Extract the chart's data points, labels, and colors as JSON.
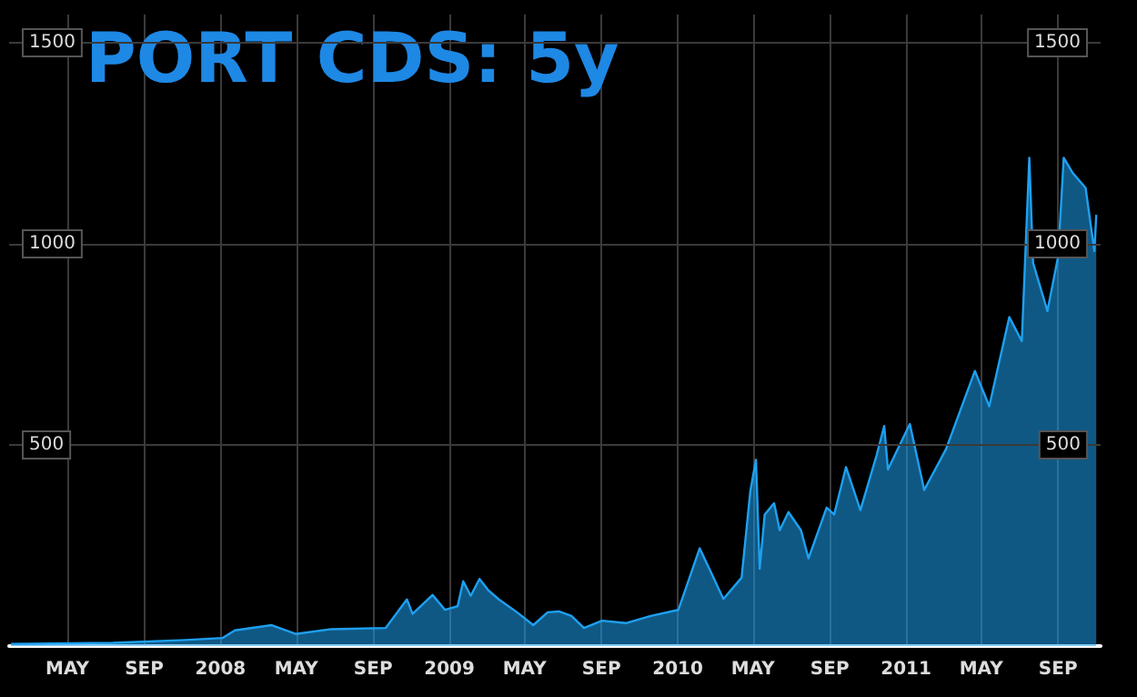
{
  "chart_data": {
    "type": "area",
    "title": "PORT CDS: 5y",
    "x": [
      "2007-01-31",
      "2007-07-13",
      "2007-11-06",
      "2008-01-04",
      "2008-01-24",
      "2008-03-23",
      "2008-04-30",
      "2008-06-26",
      "2008-09-21",
      "2008-10-25",
      "2008-11-03",
      "2008-12-05",
      "2008-12-25",
      "2009-01-14",
      "2009-01-23",
      "2009-02-04",
      "2009-02-18",
      "2009-03-04",
      "2009-03-21",
      "2009-04-19",
      "2009-05-15",
      "2009-06-07",
      "2009-06-25",
      "2009-07-15",
      "2009-08-04",
      "2009-09-02",
      "2009-10-10",
      "2009-11-19",
      "2010-01-02",
      "2010-02-05",
      "2010-02-23",
      "2010-03-15",
      "2010-04-13",
      "2010-04-27",
      "2010-05-06",
      "2010-05-12",
      "2010-05-20",
      "2010-06-04",
      "2010-06-13",
      "2010-06-27",
      "2010-07-17",
      "2010-07-29",
      "2010-08-27",
      "2010-09-08",
      "2010-09-27",
      "2010-10-20",
      "2010-11-15",
      "2010-11-27",
      "2010-12-03",
      "2011-01-07",
      "2011-01-30",
      "2011-03-06",
      "2011-04-21",
      "2011-05-14",
      "2011-06-15",
      "2011-07-05",
      "2011-07-17",
      "2011-07-23",
      "2011-08-15",
      "2011-09-01",
      "2011-09-10",
      "2011-09-24",
      "2011-10-15",
      "2011-10-29",
      "2011-11-01"
    ],
    "series": [
      {
        "color": "#1ea0f0",
        "values": [
          5,
          8,
          15,
          20,
          39,
          52,
          30,
          42,
          45,
          116,
          80,
          127,
          90,
          99,
          161,
          125,
          167,
          139,
          116,
          84,
          52,
          84,
          86,
          75,
          45,
          63,
          57,
          75,
          90,
          243,
          184,
          117,
          170,
          385,
          463,
          192,
          327,
          355,
          288,
          333,
          288,
          218,
          344,
          327,
          445,
          338,
          475,
          547,
          439,
          552,
          388,
          490,
          684,
          596,
          818,
          758,
          1214,
          953,
          833,
          968,
          1214,
          1177,
          1139,
          982,
          1072
        ]
      }
    ],
    "xlim": [
      "2007-01-28",
      "2011-11-08"
    ],
    "xticks": [
      {
        "value": "2007-05-01",
        "label": "MAY"
      },
      {
        "value": "2007-09-01",
        "label": "SEP"
      },
      {
        "value": "2008-01-01",
        "label": "2008"
      },
      {
        "value": "2008-05-01",
        "label": "MAY"
      },
      {
        "value": "2008-09-01",
        "label": "SEP"
      },
      {
        "value": "2009-01-01",
        "label": "2009"
      },
      {
        "value": "2009-05-01",
        "label": "MAY"
      },
      {
        "value": "2009-09-01",
        "label": "SEP"
      },
      {
        "value": "2010-01-01",
        "label": "2010"
      },
      {
        "value": "2010-05-01",
        "label": "MAY"
      },
      {
        "value": "2010-09-01",
        "label": "SEP"
      },
      {
        "value": "2011-01-01",
        "label": "2011"
      },
      {
        "value": "2011-05-01",
        "label": "MAY"
      },
      {
        "value": "2011-09-01",
        "label": "SEP"
      }
    ],
    "ylim": [
      0,
      1570
    ],
    "yticks": [
      500,
      1000,
      1500
    ],
    "y2lim": [
      0,
      1570
    ],
    "y2ticks": [
      500,
      1000,
      1500
    ],
    "grid": true,
    "marker": "none",
    "line_style": "solid"
  }
}
